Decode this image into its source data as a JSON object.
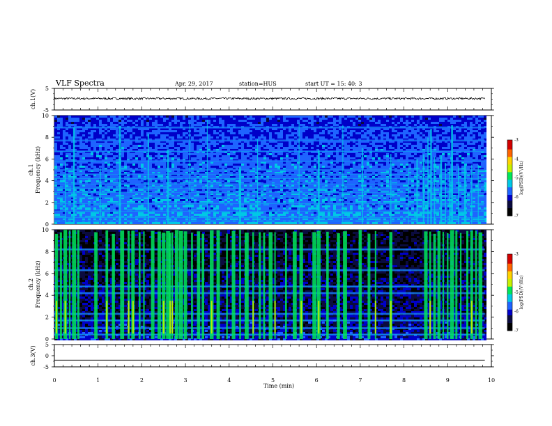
{
  "header": {
    "title": "VLF Spectra",
    "date": "Apr. 29, 2017",
    "station": "station=HUS",
    "start": "start  UT =   15: 40: 3"
  },
  "chart_data": [
    {
      "type": "line",
      "panel": "ch1-waveform",
      "ylabel": "ch.1(V)",
      "ylim": [
        -5,
        5
      ],
      "yticks": [
        "5",
        "-5"
      ],
      "series": [
        {
          "x_min": [
            0,
            9.85
          ],
          "approx_level": 0.3,
          "color": "#000000"
        }
      ]
    },
    {
      "type": "heatmap",
      "panel": "ch1-spectrogram",
      "ylabel_top": "ch.1",
      "ylabel": "Frequency  (kHz)",
      "ylim": [
        0,
        10
      ],
      "yticks": [
        "0",
        "2",
        "4",
        "6",
        "8",
        "10"
      ],
      "xlim_data_min": [
        0,
        9.85
      ],
      "background_level": "moderate",
      "horizontal_bands_khz": [
        0.3,
        0.6,
        1.2,
        1.9,
        2.5,
        2.9,
        3.3,
        3.7,
        4.2,
        4.6,
        5.0,
        5.8,
        6.7,
        7.7,
        8.9
      ],
      "bursts_min": [
        0.25,
        0.45,
        1.05,
        1.5,
        2.15,
        2.6,
        3.1,
        3.5,
        4.25,
        4.65,
        5.6,
        6.05,
        6.6,
        7.05,
        7.7,
        8.1,
        8.3,
        8.45,
        8.55,
        8.62,
        8.7,
        8.85,
        8.95,
        9.05,
        9.1,
        9.25,
        9.4,
        9.55,
        9.7
      ],
      "colorbar": {
        "label": "log(PSD)(V²/Hz)",
        "range": [
          -7,
          -3
        ],
        "ticks": [
          "-3",
          "-4",
          "-5",
          "-6",
          "-7"
        ]
      }
    },
    {
      "type": "heatmap",
      "panel": "ch2-spectrogram",
      "ylabel_top": "ch.2",
      "ylabel": "Frequency  (kHz)",
      "ylim": [
        0,
        10
      ],
      "yticks": [
        "0",
        "2",
        "4",
        "6",
        "8",
        "10"
      ],
      "xlim_data_min": [
        0,
        9.85
      ],
      "background_level": "low",
      "horizontal_bands_khz": [
        0.4,
        1.0,
        1.7,
        2.3,
        4.2,
        4.8,
        6.3,
        8.2
      ],
      "bursts_min": [
        0.05,
        0.15,
        0.25,
        0.35,
        0.45,
        0.55,
        0.95,
        1.2,
        1.35,
        1.55,
        1.7,
        1.8,
        1.95,
        2.05,
        2.25,
        2.4,
        2.5,
        2.6,
        2.65,
        2.7,
        2.8,
        2.9,
        3.0,
        3.15,
        3.3,
        3.4,
        3.6,
        3.75,
        3.95,
        4.1,
        4.25,
        4.4,
        4.55,
        4.7,
        4.8,
        4.95,
        5.05,
        5.3,
        5.5,
        5.65,
        5.95,
        6.05,
        6.25,
        6.5,
        6.65,
        7.0,
        7.2,
        7.35,
        7.7,
        8.5,
        8.6,
        8.7,
        8.8,
        8.9,
        9.0,
        9.1,
        9.2,
        9.3,
        9.45,
        9.55,
        9.65,
        9.75
      ],
      "colorbar": {
        "label": "log(PSD)(V²/Hz)",
        "range": [
          -7,
          -3
        ],
        "ticks": [
          "-3",
          "-4",
          "-5",
          "-6",
          "-7"
        ]
      }
    },
    {
      "type": "line",
      "panel": "ch3-waveform",
      "ylabel": "ch.3(V)",
      "ylim": [
        -5,
        5
      ],
      "yticks": [
        "5",
        "0",
        "-5"
      ],
      "series": [
        {
          "x_min": [
            0,
            9.85
          ],
          "approx_level": -2.0,
          "color": "#000000"
        }
      ]
    }
  ],
  "xaxis": {
    "label": "Time  (min)",
    "range": [
      0,
      10
    ],
    "ticks": [
      "0",
      "1",
      "2",
      "3",
      "4",
      "5",
      "6",
      "7",
      "8",
      "9",
      "10"
    ]
  },
  "colors": {
    "colormap": [
      "#000000",
      "#0b0b3e",
      "#0000c8",
      "#1e64ff",
      "#00c8e6",
      "#00e65a",
      "#c8f000",
      "#ffd200",
      "#ff6400",
      "#d20000",
      "#ffffff"
    ]
  }
}
